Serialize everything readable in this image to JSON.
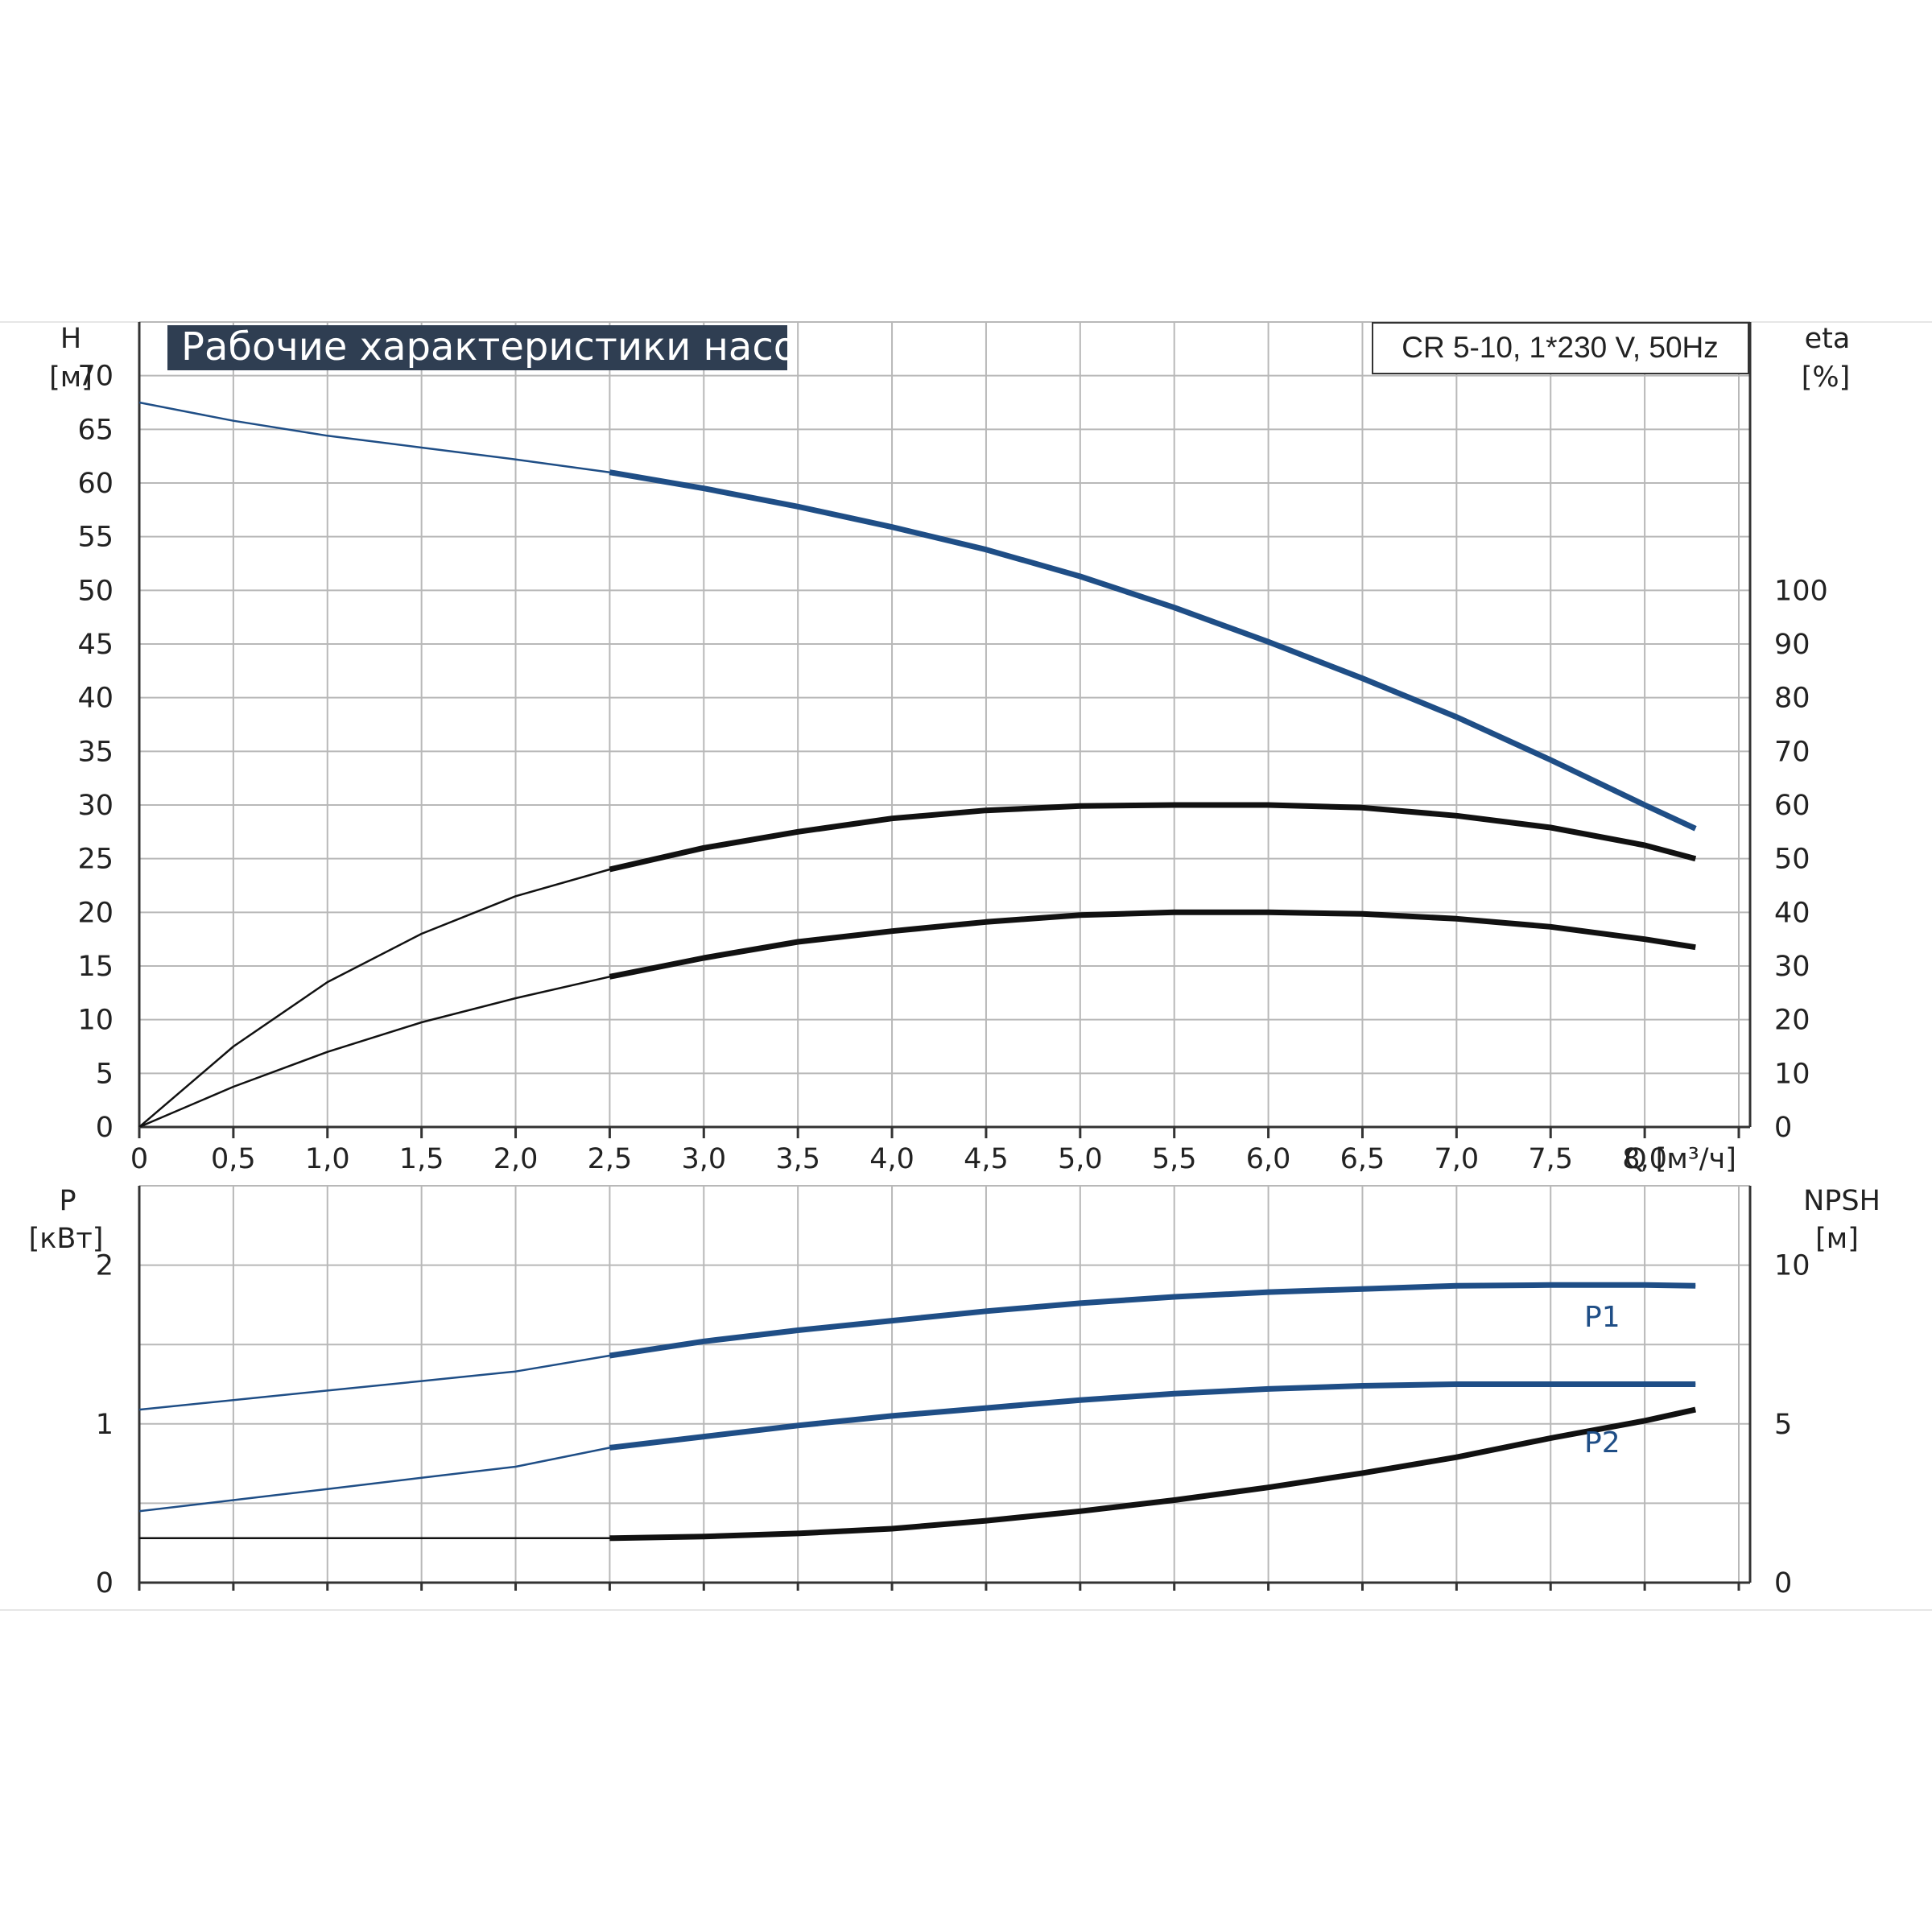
{
  "colors": {
    "blue": "#1f4e86",
    "black": "#111111",
    "title_bg": "#2f3e52",
    "grid": "#b8b8b8"
  },
  "chart_data": [
    {
      "type": "line",
      "title": "Рабочие характеристики насоса",
      "model": "CR 5-10, 1*230 V, 50Hz",
      "ylabel": "H",
      "yunit": "[м]",
      "y2label": "eta",
      "y2unit": "[%]",
      "xlabel": "Q [м³/ч]",
      "xlim": [
        0,
        8.5
      ],
      "ylim": [
        0,
        75
      ],
      "y2lim": [
        0,
        150
      ],
      "x_ticks": [
        "0",
        "0,5",
        "1,0",
        "1,5",
        "2,0",
        "2,5",
        "3,0",
        "3,5",
        "4,0",
        "4,5",
        "5,0",
        "5,5",
        "6,0",
        "6,5",
        "7,0",
        "7,5",
        "8,0"
      ],
      "y_ticks": [
        "0",
        "5",
        "10",
        "15",
        "20",
        "25",
        "30",
        "35",
        "40",
        "45",
        "50",
        "55",
        "60",
        "65",
        "70"
      ],
      "y2_ticks": [
        "0",
        "10",
        "20",
        "30",
        "40",
        "50",
        "60",
        "70",
        "80",
        "90",
        "100"
      ],
      "grid": true,
      "series": [
        {
          "key": "head",
          "axis": "y",
          "color": "#1f4e86",
          "x": [
            0,
            0.5,
            1.0,
            1.5,
            2.0,
            2.5,
            3.0,
            3.5,
            4.0,
            4.5,
            5.0,
            5.5,
            6.0,
            6.5,
            7.0,
            7.5,
            8.0,
            8.27
          ],
          "y": [
            67.5,
            65.8,
            64.4,
            63.3,
            62.2,
            61.0,
            59.5,
            57.8,
            55.9,
            53.8,
            51.3,
            48.4,
            45.2,
            41.8,
            38.2,
            34.2,
            30.0,
            27.8
          ],
          "bold_from": 2.5
        },
        {
          "key": "eta",
          "axis": "y2",
          "color": "#111111",
          "x": [
            0,
            0.5,
            1.0,
            1.5,
            2.0,
            2.5,
            3.0,
            3.5,
            4.0,
            4.5,
            5.0,
            5.5,
            6.0,
            6.5,
            7.0,
            7.5,
            8.0,
            8.27
          ],
          "y": [
            0,
            15,
            27,
            36,
            43,
            48,
            52,
            55,
            57.5,
            59,
            59.8,
            60,
            60,
            59.5,
            58,
            55.8,
            52.5,
            50
          ],
          "bold_from": 2.5
        },
        {
          "key": "eta_total",
          "axis": "y2",
          "color": "#111111",
          "x": [
            0,
            0.5,
            1.0,
            1.5,
            2.0,
            2.5,
            3.0,
            3.5,
            4.0,
            4.5,
            5.0,
            5.5,
            6.0,
            6.5,
            7.0,
            7.5,
            8.0,
            8.27
          ],
          "y": [
            0,
            7.5,
            14,
            19.5,
            24,
            28,
            31.5,
            34.5,
            36.5,
            38.2,
            39.5,
            40,
            40,
            39.7,
            38.8,
            37.3,
            35,
            33.5
          ],
          "bold_from": 2.5
        }
      ]
    },
    {
      "type": "line",
      "ylabel": "P",
      "yunit": "[кВт]",
      "y2label": "NPSH",
      "y2unit": "[м]",
      "xlim": [
        0,
        8.5
      ],
      "ylim": [
        0,
        2.5
      ],
      "y2lim": [
        0,
        12.5
      ],
      "y_ticks": [
        "0",
        "1",
        "2"
      ],
      "y2_ticks": [
        "0",
        "5",
        "10"
      ],
      "grid": true,
      "series": [
        {
          "key": "P1",
          "name": "P1",
          "axis": "y",
          "color": "#1f4e86",
          "x": [
            0,
            0.5,
            1.0,
            1.5,
            2.0,
            2.5,
            3.0,
            3.5,
            4.0,
            4.5,
            5.0,
            5.5,
            6.0,
            6.5,
            7.0,
            7.5,
            8.0,
            8.27
          ],
          "y": [
            1.09,
            1.15,
            1.21,
            1.27,
            1.33,
            1.43,
            1.52,
            1.59,
            1.65,
            1.71,
            1.76,
            1.8,
            1.83,
            1.85,
            1.87,
            1.875,
            1.875,
            1.87
          ],
          "bold_from": 2.5
        },
        {
          "key": "P2",
          "name": "P2",
          "axis": "y",
          "color": "#1f4e86",
          "x": [
            0,
            0.5,
            1.0,
            1.5,
            2.0,
            2.5,
            3.0,
            3.5,
            4.0,
            4.5,
            5.0,
            5.5,
            6.0,
            6.5,
            7.0,
            7.5,
            8.0,
            8.27
          ],
          "y": [
            0.45,
            0.52,
            0.59,
            0.66,
            0.73,
            0.85,
            0.92,
            0.99,
            1.05,
            1.1,
            1.15,
            1.19,
            1.22,
            1.24,
            1.25,
            1.25,
            1.25,
            1.25
          ],
          "bold_from": 2.5
        },
        {
          "key": "NPSH",
          "axis": "y2",
          "color": "#111111",
          "x": [
            0,
            0.5,
            1.0,
            1.5,
            2.0,
            2.5,
            3.0,
            3.5,
            4.0,
            4.5,
            5.0,
            5.5,
            6.0,
            6.5,
            7.0,
            7.5,
            8.0,
            8.27
          ],
          "y": [
            1.4,
            1.4,
            1.4,
            1.4,
            1.4,
            1.4,
            1.45,
            1.55,
            1.7,
            1.95,
            2.25,
            2.6,
            3.0,
            3.45,
            3.95,
            4.55,
            5.1,
            5.45
          ],
          "bold_from": 2.5
        }
      ]
    }
  ]
}
